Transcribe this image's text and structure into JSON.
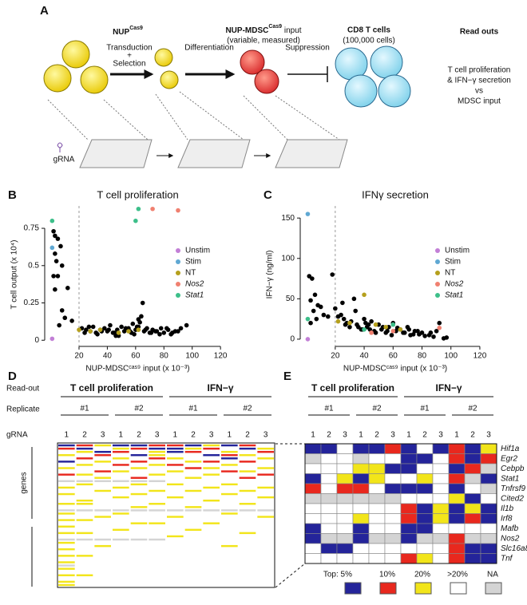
{
  "panel_labels": [
    "A",
    "B",
    "C",
    "D",
    "E"
  ],
  "panel_a": {
    "nup": "NUP",
    "nup_sup": "Cas9",
    "transduction": "Transduction",
    "plus": "+",
    "selection": "Selection",
    "differentiation": "Differentiation",
    "mdsc": "NUP-MDSC",
    "mdsc_sup": "Cas9",
    "mdsc_rest": " input",
    "mdsc_note": "(variable, measured)",
    "suppression": "Suppression",
    "tcells": "CD8 T cells",
    "tcells_note": "(100,000 cells)",
    "readouts": "Read outs",
    "readout_lines": [
      "T cell proliferation",
      "& IFN−γ secretion",
      "vs",
      "MDSC input"
    ],
    "grna": "gRNA"
  },
  "chart_data": [
    {
      "type": "scatter",
      "title": "T cell proliferation",
      "xlabel": "NUP-MDSCᶜᵃˢ⁹ input (x 10⁻³)",
      "ylabel": "T cell output (x 10⁴)",
      "xlim": [
        -2,
        125
      ],
      "ylim": [
        -0.02,
        0.9
      ],
      "xticks": [
        20,
        40,
        60,
        80,
        100,
        120
      ],
      "yticks": [
        0,
        0.25,
        0.5,
        0.75
      ],
      "vline": 20,
      "legend": "right",
      "series": [
        {
          "color": "#000000",
          "x": [
            2,
            3,
            5,
            7,
            3,
            4,
            8,
            2,
            5,
            3,
            12,
            8,
            10,
            15,
            6,
            65,
            64,
            62,
            22,
            25,
            28,
            30,
            32,
            35,
            38,
            40,
            42,
            45,
            47,
            50,
            52,
            55,
            57,
            60,
            63,
            66,
            68,
            70,
            72,
            75,
            78,
            80,
            83,
            85,
            88,
            92,
            96,
            24,
            27,
            33,
            36,
            41,
            44,
            48,
            53,
            56,
            59,
            61,
            67,
            71,
            74,
            77,
            82,
            86,
            90,
            58,
            62,
            46
          ],
          "y": [
            0.73,
            0.7,
            0.68,
            0.63,
            0.58,
            0.53,
            0.5,
            0.43,
            0.43,
            0.34,
            0.35,
            0.2,
            0.15,
            0.13,
            0.1,
            0.25,
            0.16,
            0.14,
            0.08,
            0.07,
            0.06,
            0.09,
            0.05,
            0.07,
            0.08,
            0.06,
            0.1,
            0.05,
            0.07,
            0.09,
            0.06,
            0.08,
            0.05,
            0.07,
            0.12,
            0.06,
            0.08,
            0.05,
            0.07,
            0.06,
            0.08,
            0.05,
            0.07,
            0.04,
            0.06,
            0.08,
            0.1,
            0.05,
            0.09,
            0.04,
            0.06,
            0.07,
            0.05,
            0.03,
            0.08,
            0.06,
            0.04,
            0.09,
            0.07,
            0.05,
            0.06,
            0.04,
            0.08,
            0.05,
            0.06,
            0.11,
            0.09,
            0.03
          ]
        },
        {
          "name": "Unstim",
          "color": "#c27fd6",
          "x": [
            1
          ],
          "y": [
            0.01
          ]
        },
        {
          "name": "Stim",
          "color": "#5fa8d3",
          "x": [
            1
          ],
          "y": [
            0.62
          ]
        },
        {
          "name": "NT",
          "color": "#b5a01d",
          "x": [
            20,
            28,
            35,
            48,
            55,
            62
          ],
          "y": [
            0.07,
            0.06,
            0.07,
            0.05,
            0.06,
            0.07
          ]
        },
        {
          "name": "Nos2",
          "color": "#f08070",
          "italic": true,
          "x": [
            72,
            90
          ],
          "y": [
            0.88,
            0.87
          ]
        },
        {
          "name": "Stat1",
          "color": "#3dbf8a",
          "italic": true,
          "x": [
            1,
            62,
            60
          ],
          "y": [
            0.8,
            0.88,
            0.8
          ]
        }
      ]
    },
    {
      "type": "scatter",
      "title": "IFNγ secretion",
      "xlabel": "NUP-MDSCᶜᵃˢ⁹ input (x 10⁻³)",
      "ylabel": "IFN−γ (ng/ml)",
      "xlim": [
        -2,
        125
      ],
      "ylim": [
        -5,
        165
      ],
      "xticks": [
        20,
        40,
        60,
        80,
        100,
        120
      ],
      "yticks": [
        0,
        50,
        100,
        150
      ],
      "vline": 20,
      "legend": "right",
      "series": [
        {
          "color": "#000000",
          "x": [
            2,
            4,
            6,
            3,
            8,
            5,
            10,
            12,
            7,
            15,
            18,
            3,
            20,
            25,
            22,
            28,
            30,
            33,
            35,
            38,
            40,
            42,
            45,
            47,
            50,
            52,
            55,
            57,
            60,
            62,
            65,
            68,
            70,
            72,
            75,
            78,
            80,
            85,
            88,
            90,
            95,
            24,
            27,
            31,
            36,
            41,
            44,
            48,
            53,
            56,
            59,
            63,
            67,
            71,
            74,
            77,
            82,
            86,
            92,
            97,
            26,
            34,
            39,
            43
          ],
          "y": [
            78,
            75,
            55,
            48,
            42,
            35,
            40,
            30,
            25,
            28,
            80,
            20,
            38,
            45,
            28,
            20,
            15,
            50,
            18,
            12,
            25,
            15,
            22,
            10,
            18,
            12,
            8,
            15,
            20,
            10,
            12,
            8,
            15,
            5,
            10,
            6,
            8,
            5,
            3,
            10,
            1,
            30,
            18,
            22,
            15,
            20,
            12,
            8,
            15,
            10,
            5,
            14,
            8,
            12,
            6,
            10,
            4,
            8,
            20,
            2,
            25,
            35,
            12,
            18
          ]
        },
        {
          "name": "Unstim",
          "color": "#c27fd6",
          "x": [
            1
          ],
          "y": [
            0
          ]
        },
        {
          "name": "Stim",
          "color": "#5fa8d3",
          "x": [
            1
          ],
          "y": [
            155
          ]
        },
        {
          "name": "NT",
          "color": "#b5a01d",
          "x": [
            22,
            30,
            40,
            48,
            55,
            65
          ],
          "y": [
            22,
            20,
            55,
            18,
            15,
            12
          ]
        },
        {
          "name": "Nos2",
          "color": "#f08070",
          "italic": true,
          "x": [
            45,
            60,
            92
          ],
          "y": [
            8,
            10,
            14
          ]
        },
        {
          "name": "Stat1",
          "color": "#3dbf8a",
          "italic": true,
          "x": [
            1,
            60,
            40
          ],
          "y": [
            25,
            18,
            12
          ]
        }
      ]
    }
  ],
  "panel_d": {
    "readout_label": "Read-out",
    "replicate_label": "Replicate",
    "grna_label": "gRNA",
    "groups": [
      "T cell proliferation",
      "IFN−γ"
    ],
    "replicates": [
      "#1",
      "#2"
    ],
    "grnas": [
      "1",
      "2",
      "3"
    ],
    "genes_label": "genes",
    "rows": [
      [
        0,
        1,
        2,
        0,
        0,
        1,
        1,
        0,
        2,
        0,
        1,
        3
      ],
      [
        1,
        0,
        3,
        2,
        1,
        0,
        0,
        2,
        1,
        3,
        0,
        2
      ],
      [
        3,
        2,
        0,
        1,
        3,
        2,
        0,
        1,
        3,
        2,
        3,
        1
      ],
      [
        2,
        3,
        1,
        3,
        0,
        2,
        3,
        3,
        0,
        1,
        2,
        3
      ],
      [
        3,
        1,
        3,
        2,
        3,
        1,
        2,
        3,
        3,
        0,
        3,
        2
      ],
      [
        0,
        3,
        2,
        3,
        1,
        3,
        3,
        2,
        1,
        3,
        1,
        3
      ],
      [
        3,
        2,
        3,
        1,
        3,
        2,
        1,
        3,
        3,
        2,
        3,
        3
      ],
      [
        2,
        3,
        3,
        3,
        2,
        3,
        3,
        1,
        2,
        3,
        3,
        2
      ],
      [
        3,
        3,
        1,
        2,
        3,
        3,
        2,
        3,
        3,
        1,
        2,
        3
      ],
      [
        1,
        2,
        3,
        3,
        3,
        2,
        3,
        3,
        2,
        3,
        3,
        1
      ],
      [
        3,
        3,
        2,
        3,
        1,
        3,
        3,
        2,
        3,
        3,
        1,
        3
      ],
      [
        4,
        4,
        4,
        4,
        4,
        4,
        3,
        3,
        3,
        3,
        3,
        3
      ],
      [
        3,
        2,
        3,
        3,
        2,
        3,
        2,
        3,
        3,
        2,
        3,
        3
      ],
      [
        2,
        3,
        3,
        2,
        3,
        3,
        3,
        3,
        2,
        3,
        3,
        2
      ],
      [
        3,
        3,
        2,
        3,
        3,
        2,
        3,
        2,
        3,
        3,
        2,
        3
      ],
      [
        2,
        3,
        3,
        3,
        2,
        3,
        3,
        3,
        3,
        2,
        3,
        3
      ],
      [
        3,
        3,
        3,
        2,
        3,
        3,
        2,
        3,
        3,
        3,
        3,
        2
      ],
      [
        3,
        2,
        3,
        3,
        3,
        3,
        3,
        3,
        2,
        3,
        3,
        3
      ],
      [
        2,
        2,
        3,
        3,
        3,
        2,
        3,
        3,
        3,
        3,
        2,
        3
      ],
      [
        3,
        3,
        3,
        3,
        2,
        3,
        3,
        2,
        3,
        3,
        3,
        3
      ],
      [
        4,
        4,
        4,
        4,
        4,
        4,
        4,
        4,
        4,
        4,
        4,
        4
      ],
      [
        2,
        3,
        3,
        2,
        3,
        3,
        3,
        3,
        3,
        2,
        3,
        3
      ],
      [
        3,
        3,
        2,
        3,
        3,
        3,
        2,
        3,
        3,
        3,
        3,
        2
      ],
      [
        2,
        2,
        3,
        3,
        3,
        3,
        3,
        3,
        3,
        3,
        3,
        3
      ],
      [
        3,
        3,
        3,
        3,
        2,
        2,
        3,
        3,
        2,
        3,
        3,
        3
      ],
      [
        2,
        3,
        3,
        3,
        3,
        3,
        3,
        3,
        3,
        3,
        3,
        3
      ],
      [
        3,
        3,
        3,
        2,
        3,
        3,
        3,
        2,
        3,
        3,
        3,
        3
      ],
      [
        2,
        2,
        3,
        3,
        3,
        3,
        3,
        3,
        3,
        3,
        2,
        3
      ],
      [
        3,
        3,
        3,
        3,
        3,
        3,
        2,
        3,
        3,
        3,
        3,
        3
      ],
      [
        4,
        4,
        4,
        4,
        4,
        4,
        3,
        3,
        3,
        3,
        3,
        3
      ],
      [
        2,
        3,
        3,
        3,
        3,
        3,
        3,
        3,
        3,
        3,
        3,
        3
      ],
      [
        3,
        3,
        2,
        3,
        3,
        3,
        3,
        3,
        3,
        2,
        3,
        3
      ],
      [
        2,
        3,
        3,
        3,
        3,
        3,
        3,
        3,
        3,
        3,
        3,
        3
      ],
      [
        3,
        3,
        3,
        3,
        3,
        3,
        3,
        3,
        3,
        3,
        3,
        3
      ],
      [
        2,
        2,
        3,
        3,
        3,
        3,
        3,
        3,
        3,
        3,
        3,
        3
      ],
      [
        3,
        3,
        3,
        3,
        3,
        3,
        3,
        3,
        3,
        3,
        3,
        3
      ],
      [
        2,
        3,
        3,
        3,
        3,
        3,
        3,
        3,
        3,
        3,
        3,
        3
      ],
      [
        4,
        3,
        3,
        3,
        3,
        3,
        3,
        3,
        3,
        3,
        3,
        3
      ],
      [
        2,
        3,
        3,
        3,
        3,
        3,
        3,
        3,
        3,
        3,
        3,
        3
      ],
      [
        3,
        3,
        3,
        3,
        3,
        3,
        3,
        3,
        3,
        3,
        3,
        3
      ],
      [
        2,
        2,
        3,
        3,
        3,
        3,
        3,
        3,
        3,
        3,
        3,
        3
      ],
      [
        3,
        3,
        3,
        3,
        3,
        3,
        3,
        3,
        3,
        3,
        3,
        3
      ],
      [
        2,
        3,
        3,
        3,
        3,
        3,
        3,
        3,
        3,
        3,
        3,
        3
      ],
      [
        2,
        3,
        3,
        3,
        3,
        3,
        3,
        3,
        3,
        3,
        3,
        3
      ]
    ]
  },
  "panel_e": {
    "groups": [
      "T cell proliferation",
      "IFN−γ"
    ],
    "replicates": [
      "#1",
      "#2"
    ],
    "grnas": [
      "1",
      "2",
      "3"
    ],
    "genes": [
      "Hif1a",
      "Egr2",
      "Cebpb",
      "Stat1",
      "Tnfrsf9",
      "Cited2",
      "Il1b",
      "Irf8",
      "Mafb",
      "Nos2",
      "Slc16a8",
      "Tnf"
    ],
    "rows": [
      [
        0,
        0,
        3,
        0,
        0,
        1,
        0,
        3,
        0,
        1,
        0,
        2
      ],
      [
        4,
        3,
        3,
        4,
        3,
        3,
        0,
        0,
        3,
        1,
        0,
        1
      ],
      [
        3,
        3,
        3,
        2,
        2,
        0,
        0,
        3,
        3,
        0,
        1,
        4
      ],
      [
        0,
        3,
        2,
        0,
        2,
        3,
        3,
        2,
        3,
        1,
        4,
        0
      ],
      [
        1,
        3,
        1,
        1,
        3,
        0,
        0,
        0,
        3,
        0,
        3,
        4
      ],
      [
        4,
        4,
        4,
        4,
        4,
        4,
        3,
        3,
        3,
        2,
        0,
        3
      ],
      [
        3,
        3,
        3,
        3,
        3,
        3,
        1,
        0,
        2,
        0,
        2,
        0
      ],
      [
        3,
        3,
        3,
        2,
        3,
        3,
        1,
        0,
        2,
        0,
        1,
        0
      ],
      [
        0,
        3,
        3,
        0,
        3,
        3,
        0,
        0,
        3,
        3,
        3,
        3
      ],
      [
        0,
        4,
        4,
        0,
        4,
        4,
        0,
        4,
        4,
        1,
        4,
        4
      ],
      [
        3,
        0,
        0,
        3,
        3,
        3,
        3,
        3,
        3,
        1,
        0,
        0
      ],
      [
        3,
        3,
        3,
        3,
        3,
        3,
        1,
        2,
        3,
        1,
        0,
        0
      ]
    ],
    "legend": [
      {
        "label": "Top: 5%",
        "color": "#24249a"
      },
      {
        "label": "10%",
        "color": "#e8281e"
      },
      {
        "label": "20%",
        "color": "#f2e51a"
      },
      {
        "label": ">20%",
        "color": "#ffffff"
      },
      {
        "label": "NA",
        "color": "#d4d4d4"
      }
    ]
  }
}
